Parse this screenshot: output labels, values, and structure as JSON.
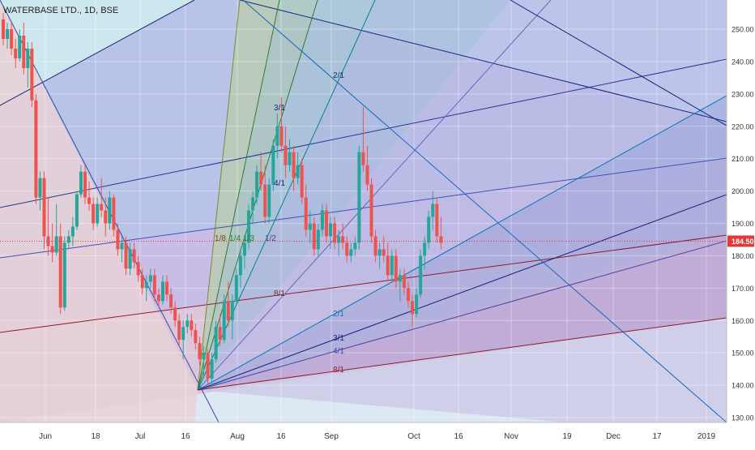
{
  "header": {
    "symbol_label": "WATERBASE LTD., 1D, BSE"
  },
  "chart_data": {
    "type": "candlestick",
    "title": "WATERBASE LTD., 1D, BSE",
    "interval": "1D",
    "exchange": "BSE",
    "last_price": "184.50",
    "y_ticks": [
      "250.00",
      "240.00",
      "230.00",
      "220.00",
      "210.00",
      "200.00",
      "190.00",
      "180.00",
      "170.00",
      "160.00",
      "150.00",
      "140.00",
      "130.00"
    ],
    "x_ticks": [
      "Jun",
      "18",
      "Jul",
      "16",
      "Aug",
      "16",
      "Sep",
      "Oct",
      "16",
      "Nov",
      "19",
      "Dec",
      "17",
      "2019"
    ],
    "ylim": [
      127,
      257
    ],
    "gann_fan_labels": [
      "2/1",
      "3/1",
      "4/1",
      "1/8",
      "1/4",
      "1/3",
      "1/2",
      "8/1",
      "2/1",
      "3/1",
      "4/1",
      "8/1"
    ],
    "colors": {
      "up": "#26a69a",
      "down": "#ef5350",
      "price_line": "#e53935",
      "grid": "#e6e6e6"
    },
    "candles": [
      {
        "o": 253,
        "h": 255,
        "l": 245,
        "c": 247
      },
      {
        "o": 247,
        "h": 252,
        "l": 244,
        "c": 250
      },
      {
        "o": 250,
        "h": 252,
        "l": 242,
        "c": 244
      },
      {
        "o": 244,
        "h": 247,
        "l": 238,
        "c": 241
      },
      {
        "o": 241,
        "h": 250,
        "l": 240,
        "c": 248
      },
      {
        "o": 248,
        "h": 252,
        "l": 236,
        "c": 238
      },
      {
        "o": 238,
        "h": 246,
        "l": 232,
        "c": 244
      },
      {
        "o": 244,
        "h": 246,
        "l": 226,
        "c": 228
      },
      {
        "o": 228,
        "h": 230,
        "l": 196,
        "c": 198
      },
      {
        "o": 198,
        "h": 206,
        "l": 194,
        "c": 204
      },
      {
        "o": 204,
        "h": 206,
        "l": 182,
        "c": 186
      },
      {
        "o": 186,
        "h": 198,
        "l": 180,
        "c": 183
      },
      {
        "o": 183,
        "h": 190,
        "l": 178,
        "c": 181
      },
      {
        "o": 181,
        "h": 196,
        "l": 180,
        "c": 186
      },
      {
        "o": 186,
        "h": 190,
        "l": 162,
        "c": 164
      },
      {
        "o": 164,
        "h": 186,
        "l": 163,
        "c": 184
      },
      {
        "o": 184,
        "h": 188,
        "l": 182,
        "c": 186
      },
      {
        "o": 186,
        "h": 192,
        "l": 183,
        "c": 189
      },
      {
        "o": 189,
        "h": 200,
        "l": 188,
        "c": 199
      },
      {
        "o": 199,
        "h": 208,
        "l": 198,
        "c": 206
      },
      {
        "o": 206,
        "h": 208,
        "l": 196,
        "c": 198
      },
      {
        "o": 198,
        "h": 203,
        "l": 194,
        "c": 196
      },
      {
        "o": 196,
        "h": 198,
        "l": 188,
        "c": 190
      },
      {
        "o": 190,
        "h": 198,
        "l": 189,
        "c": 196
      },
      {
        "o": 196,
        "h": 204,
        "l": 192,
        "c": 194
      },
      {
        "o": 194,
        "h": 198,
        "l": 186,
        "c": 190
      },
      {
        "o": 190,
        "h": 200,
        "l": 188,
        "c": 198
      },
      {
        "o": 198,
        "h": 199,
        "l": 186,
        "c": 188
      },
      {
        "o": 188,
        "h": 190,
        "l": 180,
        "c": 182
      },
      {
        "o": 182,
        "h": 186,
        "l": 178,
        "c": 184
      },
      {
        "o": 184,
        "h": 186,
        "l": 174,
        "c": 176
      },
      {
        "o": 176,
        "h": 184,
        "l": 174,
        "c": 182
      },
      {
        "o": 182,
        "h": 184,
        "l": 176,
        "c": 178
      },
      {
        "o": 178,
        "h": 180,
        "l": 172,
        "c": 174
      },
      {
        "o": 174,
        "h": 176,
        "l": 168,
        "c": 170
      },
      {
        "o": 170,
        "h": 174,
        "l": 166,
        "c": 172
      },
      {
        "o": 172,
        "h": 176,
        "l": 170,
        "c": 174
      },
      {
        "o": 174,
        "h": 176,
        "l": 166,
        "c": 168
      },
      {
        "o": 168,
        "h": 170,
        "l": 164,
        "c": 166
      },
      {
        "o": 166,
        "h": 174,
        "l": 165,
        "c": 172
      },
      {
        "o": 172,
        "h": 174,
        "l": 166,
        "c": 168
      },
      {
        "o": 168,
        "h": 170,
        "l": 162,
        "c": 164
      },
      {
        "o": 164,
        "h": 166,
        "l": 158,
        "c": 160
      },
      {
        "o": 160,
        "h": 162,
        "l": 152,
        "c": 154
      },
      {
        "o": 154,
        "h": 160,
        "l": 148,
        "c": 158
      },
      {
        "o": 158,
        "h": 162,
        "l": 156,
        "c": 160
      },
      {
        "o": 160,
        "h": 162,
        "l": 155,
        "c": 157
      },
      {
        "o": 157,
        "h": 159,
        "l": 151,
        "c": 153
      },
      {
        "o": 153,
        "h": 155,
        "l": 146,
        "c": 148
      },
      {
        "o": 148,
        "h": 152,
        "l": 143,
        "c": 150
      },
      {
        "o": 150,
        "h": 151,
        "l": 140,
        "c": 142
      },
      {
        "o": 142,
        "h": 150,
        "l": 139,
        "c": 148
      },
      {
        "o": 148,
        "h": 160,
        "l": 147,
        "c": 158
      },
      {
        "o": 158,
        "h": 162,
        "l": 152,
        "c": 154
      },
      {
        "o": 154,
        "h": 168,
        "l": 153,
        "c": 166
      },
      {
        "o": 166,
        "h": 172,
        "l": 158,
        "c": 160
      },
      {
        "o": 160,
        "h": 168,
        "l": 154,
        "c": 166
      },
      {
        "o": 166,
        "h": 176,
        "l": 165,
        "c": 174
      },
      {
        "o": 174,
        "h": 182,
        "l": 170,
        "c": 180
      },
      {
        "o": 180,
        "h": 186,
        "l": 176,
        "c": 184
      },
      {
        "o": 184,
        "h": 196,
        "l": 182,
        "c": 194
      },
      {
        "o": 194,
        "h": 200,
        "l": 190,
        "c": 198
      },
      {
        "o": 198,
        "h": 208,
        "l": 196,
        "c": 206
      },
      {
        "o": 206,
        "h": 212,
        "l": 200,
        "c": 202
      },
      {
        "o": 202,
        "h": 208,
        "l": 190,
        "c": 192
      },
      {
        "o": 192,
        "h": 204,
        "l": 190,
        "c": 202
      },
      {
        "o": 202,
        "h": 216,
        "l": 200,
        "c": 214
      },
      {
        "o": 214,
        "h": 224,
        "l": 210,
        "c": 220
      },
      {
        "o": 220,
        "h": 229,
        "l": 212,
        "c": 214
      },
      {
        "o": 214,
        "h": 220,
        "l": 204,
        "c": 208
      },
      {
        "o": 208,
        "h": 216,
        "l": 206,
        "c": 212
      },
      {
        "o": 212,
        "h": 214,
        "l": 200,
        "c": 204
      },
      {
        "o": 204,
        "h": 212,
        "l": 202,
        "c": 208
      },
      {
        "o": 208,
        "h": 210,
        "l": 196,
        "c": 198
      },
      {
        "o": 198,
        "h": 202,
        "l": 186,
        "c": 188
      },
      {
        "o": 188,
        "h": 194,
        "l": 184,
        "c": 190
      },
      {
        "o": 190,
        "h": 192,
        "l": 180,
        "c": 182
      },
      {
        "o": 182,
        "h": 190,
        "l": 180,
        "c": 188
      },
      {
        "o": 188,
        "h": 196,
        "l": 186,
        "c": 194
      },
      {
        "o": 194,
        "h": 196,
        "l": 184,
        "c": 186
      },
      {
        "o": 186,
        "h": 192,
        "l": 182,
        "c": 190
      },
      {
        "o": 190,
        "h": 192,
        "l": 182,
        "c": 184
      },
      {
        "o": 184,
        "h": 188,
        "l": 180,
        "c": 186
      },
      {
        "o": 186,
        "h": 190,
        "l": 182,
        "c": 184
      },
      {
        "o": 184,
        "h": 186,
        "l": 178,
        "c": 180
      },
      {
        "o": 180,
        "h": 184,
        "l": 178,
        "c": 182
      },
      {
        "o": 182,
        "h": 186,
        "l": 180,
        "c": 184
      },
      {
        "o": 184,
        "h": 214,
        "l": 182,
        "c": 212
      },
      {
        "o": 212,
        "h": 226,
        "l": 206,
        "c": 208
      },
      {
        "o": 208,
        "h": 214,
        "l": 200,
        "c": 202
      },
      {
        "o": 202,
        "h": 204,
        "l": 184,
        "c": 186
      },
      {
        "o": 186,
        "h": 188,
        "l": 178,
        "c": 180
      },
      {
        "o": 180,
        "h": 184,
        "l": 176,
        "c": 182
      },
      {
        "o": 182,
        "h": 186,
        "l": 178,
        "c": 180
      },
      {
        "o": 180,
        "h": 184,
        "l": 172,
        "c": 174
      },
      {
        "o": 174,
        "h": 182,
        "l": 172,
        "c": 180
      },
      {
        "o": 180,
        "h": 182,
        "l": 170,
        "c": 172
      },
      {
        "o": 172,
        "h": 176,
        "l": 166,
        "c": 174
      },
      {
        "o": 174,
        "h": 176,
        "l": 168,
        "c": 170
      },
      {
        "o": 170,
        "h": 172,
        "l": 164,
        "c": 166
      },
      {
        "o": 166,
        "h": 168,
        "l": 158,
        "c": 162
      },
      {
        "o": 162,
        "h": 170,
        "l": 161,
        "c": 168
      },
      {
        "o": 168,
        "h": 182,
        "l": 167,
        "c": 180
      },
      {
        "o": 180,
        "h": 186,
        "l": 176,
        "c": 184
      },
      {
        "o": 184,
        "h": 194,
        "l": 182,
        "c": 192
      },
      {
        "o": 192,
        "h": 200,
        "l": 188,
        "c": 196
      },
      {
        "o": 196,
        "h": 198,
        "l": 184,
        "c": 186
      },
      {
        "o": 186,
        "h": 192,
        "l": 182,
        "c": 184
      }
    ]
  }
}
